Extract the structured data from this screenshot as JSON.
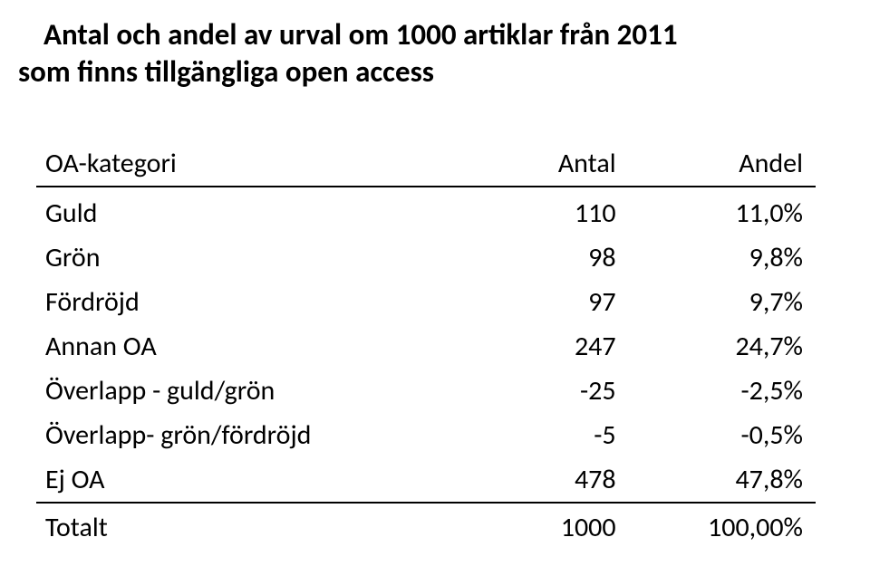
{
  "title": {
    "line1": "Antal och andel av urval om 1000 artiklar från 2011",
    "line2": "som finns tillgängliga open access"
  },
  "table": {
    "headers": {
      "category": "OA-kategori",
      "count": "Antal",
      "share": "Andel"
    },
    "rows": [
      {
        "category": "Guld",
        "count": "110",
        "share": "11,0%"
      },
      {
        "category": "Grön",
        "count": "98",
        "share": "9,8%"
      },
      {
        "category": "Fördröjd",
        "count": "97",
        "share": "9,7%"
      },
      {
        "category": "Annan OA",
        "count": "247",
        "share": "24,7%"
      },
      {
        "category": "Överlapp - guld/grön",
        "count": "-25",
        "share": "-2,5%"
      },
      {
        "category": "Överlapp- grön/fördröjd",
        "count": "-5",
        "share": "-0,5%"
      },
      {
        "category": "Ej OA",
        "count": "478",
        "share": "47,8%"
      }
    ],
    "footer": {
      "category": "Totalt",
      "count": "1000",
      "share": "100,00%"
    }
  }
}
